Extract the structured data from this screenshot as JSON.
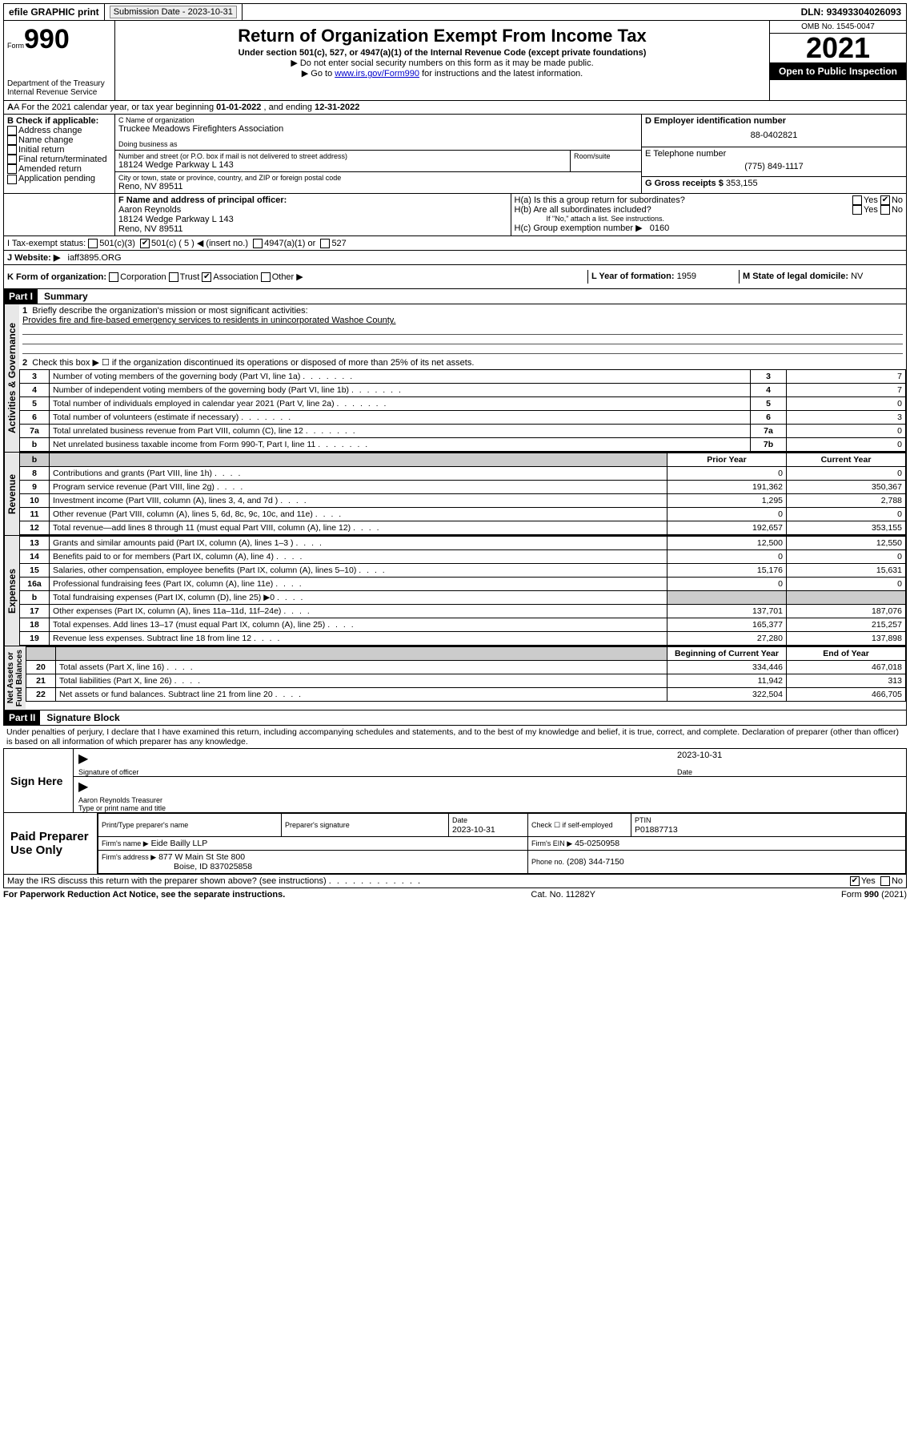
{
  "topbar": {
    "efile": "efile GRAPHIC print",
    "submission_label": "Submission Date - ",
    "submission_date": "2023-10-31",
    "dln_label": "DLN: ",
    "dln": "93493304026093"
  },
  "header": {
    "form_small": "Form",
    "form_big": "990",
    "title": "Return of Organization Exempt From Income Tax",
    "sub1": "Under section 501(c), 527, or 4947(a)(1) of the Internal Revenue Code (except private foundations)",
    "sub2": "▶ Do not enter social security numbers on this form as it may be made public.",
    "sub3_pre": "▶ Go to ",
    "sub3_link": "www.irs.gov/Form990",
    "sub3_post": " for instructions and the latest information.",
    "dept": "Department of the Treasury\nInternal Revenue Service",
    "omb": "OMB No. 1545-0047",
    "year": "2021",
    "inspect": "Open to Public Inspection"
  },
  "lineA": {
    "text_pre": "A For the 2021 calendar year, or tax year beginning ",
    "begin": "01-01-2022",
    "mid": " , and ending ",
    "end": "12-31-2022"
  },
  "boxB": {
    "label": "B Check if applicable:",
    "items": [
      "Address change",
      "Name change",
      "Initial return",
      "Final return/terminated",
      "Amended return",
      "Application pending"
    ]
  },
  "boxC": {
    "name_label": "C Name of organization",
    "name": "Truckee Meadows Firefighters Association",
    "dba_label": "Doing business as",
    "dba": "",
    "addr_label": "Number and street (or P.O. box if mail is not delivered to street address)",
    "room_label": "Room/suite",
    "addr": "18124 Wedge Parkway L 143",
    "city_label": "City or town, state or province, country, and ZIP or foreign postal code",
    "city": "Reno, NV  89511"
  },
  "boxD": {
    "label": "D Employer identification number",
    "value": "88-0402821"
  },
  "boxE": {
    "label": "E Telephone number",
    "value": "(775) 849-1117"
  },
  "boxG": {
    "label": "G Gross receipts $",
    "value": "353,155"
  },
  "boxF": {
    "label": "F Name and address of principal officer:",
    "name": "Aaron Reynolds",
    "addr": "18124 Wedge Parkway L 143",
    "city": "Reno, NV  89511"
  },
  "boxH": {
    "ha": "H(a)  Is this a group return for subordinates?",
    "hb": "H(b)  Are all subordinates included?",
    "hb_note": "If \"No,\" attach a list. See instructions.",
    "hc": "H(c)  Group exemption number ▶",
    "hc_val": "0160"
  },
  "lineI": {
    "label": "I   Tax-exempt status:",
    "c3": "501(c)(3)",
    "c": "501(c) ( 5 ) ◀ (insert no.)",
    "c4947": "4947(a)(1) or",
    "c527": "527"
  },
  "lineJ": {
    "label": "J   Website: ▶",
    "value": "iaff3895.ORG"
  },
  "lineK": {
    "label": "K Form of organization:",
    "opts": [
      "Corporation",
      "Trust",
      "Association",
      "Other ▶"
    ],
    "checked_index": 2
  },
  "lineL": {
    "label": "L Year of formation:",
    "value": "1959"
  },
  "lineM": {
    "label": "M State of legal domicile:",
    "value": "NV"
  },
  "part1": {
    "header": "Part I",
    "title": "Summary",
    "q1": "Briefly describe the organization's mission or most significant activities:",
    "q1_ans": "Provides fire and fire-based emergency services to residents in unincorporated Washoe County.",
    "q2": "Check this box ▶ ☐ if the organization discontinued its operations or disposed of more than 25% of its net assets.",
    "lines_top": [
      {
        "num": "3",
        "text": "Number of voting members of the governing body (Part VI, line 1a)",
        "box": "3",
        "val": "7"
      },
      {
        "num": "4",
        "text": "Number of independent voting members of the governing body (Part VI, line 1b)",
        "box": "4",
        "val": "7"
      },
      {
        "num": "5",
        "text": "Total number of individuals employed in calendar year 2021 (Part V, line 2a)",
        "box": "5",
        "val": "0"
      },
      {
        "num": "6",
        "text": "Total number of volunteers (estimate if necessary)",
        "box": "6",
        "val": "3"
      },
      {
        "num": "7a",
        "text": "Total unrelated business revenue from Part VIII, column (C), line 12",
        "box": "7a",
        "val": "0"
      },
      {
        "num": "b",
        "text": "Net unrelated business taxable income from Form 990-T, Part I, line 11",
        "box": "7b",
        "val": "0"
      }
    ],
    "col_prior": "Prior Year",
    "col_current": "Current Year",
    "revenue": [
      {
        "num": "8",
        "text": "Contributions and grants (Part VIII, line 1h)",
        "prior": "0",
        "curr": "0"
      },
      {
        "num": "9",
        "text": "Program service revenue (Part VIII, line 2g)",
        "prior": "191,362",
        "curr": "350,367"
      },
      {
        "num": "10",
        "text": "Investment income (Part VIII, column (A), lines 3, 4, and 7d )",
        "prior": "1,295",
        "curr": "2,788"
      },
      {
        "num": "11",
        "text": "Other revenue (Part VIII, column (A), lines 5, 6d, 8c, 9c, 10c, and 11e)",
        "prior": "0",
        "curr": "0"
      },
      {
        "num": "12",
        "text": "Total revenue—add lines 8 through 11 (must equal Part VIII, column (A), line 12)",
        "prior": "192,657",
        "curr": "353,155"
      }
    ],
    "expenses": [
      {
        "num": "13",
        "text": "Grants and similar amounts paid (Part IX, column (A), lines 1–3 )",
        "prior": "12,500",
        "curr": "12,550"
      },
      {
        "num": "14",
        "text": "Benefits paid to or for members (Part IX, column (A), line 4)",
        "prior": "0",
        "curr": "0"
      },
      {
        "num": "15",
        "text": "Salaries, other compensation, employee benefits (Part IX, column (A), lines 5–10)",
        "prior": "15,176",
        "curr": "15,631"
      },
      {
        "num": "16a",
        "text": "Professional fundraising fees (Part IX, column (A), line 11e)",
        "prior": "0",
        "curr": "0"
      },
      {
        "num": "b",
        "text": "Total fundraising expenses (Part IX, column (D), line 25) ▶0",
        "prior": "",
        "curr": "",
        "shade": true
      },
      {
        "num": "17",
        "text": "Other expenses (Part IX, column (A), lines 11a–11d, 11f–24e)",
        "prior": "137,701",
        "curr": "187,076"
      },
      {
        "num": "18",
        "text": "Total expenses. Add lines 13–17 (must equal Part IX, column (A), line 25)",
        "prior": "165,377",
        "curr": "215,257"
      },
      {
        "num": "19",
        "text": "Revenue less expenses. Subtract line 18 from line 12",
        "prior": "27,280",
        "curr": "137,898"
      }
    ],
    "col_begin": "Beginning of Current Year",
    "col_end": "End of Year",
    "netassets": [
      {
        "num": "20",
        "text": "Total assets (Part X, line 16)",
        "prior": "334,446",
        "curr": "467,018"
      },
      {
        "num": "21",
        "text": "Total liabilities (Part X, line 26)",
        "prior": "11,942",
        "curr": "313"
      },
      {
        "num": "22",
        "text": "Net assets or fund balances. Subtract line 21 from line 20",
        "prior": "322,504",
        "curr": "466,705"
      }
    ],
    "vlabels": {
      "gov": "Activities & Governance",
      "rev": "Revenue",
      "exp": "Expenses",
      "net": "Net Assets or\nFund Balances"
    }
  },
  "part2": {
    "header": "Part II",
    "title": "Signature Block",
    "decl": "Under penalties of perjury, I declare that I have examined this return, including accompanying schedules and statements, and to the best of my knowledge and belief, it is true, correct, and complete. Declaration of preparer (other than officer) is based on all information of which preparer has any knowledge."
  },
  "sign": {
    "here": "Sign Here",
    "sig_officer": "Signature of officer",
    "date_label": "Date",
    "date": "2023-10-31",
    "name": "Aaron Reynolds Treasurer",
    "name_label": "Type or print name and title"
  },
  "preparer": {
    "label": "Paid Preparer Use Only",
    "cols": [
      "Print/Type preparer's name",
      "Preparer's signature",
      "Date",
      "",
      "PTIN"
    ],
    "date": "2023-10-31",
    "self": "Check ☐ if self-employed",
    "ptin": "P01887713",
    "firm_name_label": "Firm's name   ▶",
    "firm_name": "Eide Bailly LLP",
    "firm_ein_label": "Firm's EIN ▶",
    "firm_ein": "45-0250958",
    "firm_addr_label": "Firm's address ▶",
    "firm_addr": "877 W Main St Ste 800",
    "firm_city": "Boise, ID  837025858",
    "phone_label": "Phone no.",
    "phone": "(208) 344-7150"
  },
  "may_irs": {
    "text": "May the IRS discuss this return with the preparer shown above? (see instructions)",
    "yes": "Yes",
    "no": "No"
  },
  "footer": {
    "left": "For Paperwork Reduction Act Notice, see the separate instructions.",
    "mid": "Cat. No. 11282Y",
    "right": "Form 990 (2021)"
  },
  "colors": {
    "link": "#0000cc",
    "shade": "#cccccc",
    "vbg": "#e8e8e8"
  }
}
